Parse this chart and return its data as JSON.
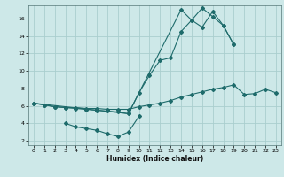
{
  "background_color": "#cde8e8",
  "grid_color": "#aacece",
  "line_color": "#1e6b6b",
  "xlabel": "Humidex (Indice chaleur)",
  "xlim": [
    -0.5,
    23.5
  ],
  "ylim": [
    1.5,
    17.5
  ],
  "yticks": [
    2,
    4,
    6,
    8,
    10,
    12,
    14,
    16
  ],
  "xticks": [
    0,
    1,
    2,
    3,
    4,
    5,
    6,
    7,
    8,
    9,
    10,
    11,
    12,
    13,
    14,
    15,
    16,
    17,
    18,
    19,
    20,
    21,
    22,
    23
  ],
  "series1_x": [
    0,
    1,
    2,
    3,
    4,
    5,
    6,
    7,
    8,
    9,
    10,
    11,
    12,
    13,
    14,
    15,
    16,
    17,
    18,
    19,
    20,
    21,
    22,
    23
  ],
  "series1_y": [
    6.3,
    6.1,
    5.9,
    5.8,
    5.8,
    5.7,
    5.7,
    5.6,
    5.6,
    5.6,
    5.9,
    6.1,
    6.3,
    6.6,
    7.0,
    7.3,
    7.6,
    7.9,
    8.1,
    8.4,
    7.3,
    7.4,
    7.9,
    7.5
  ],
  "series2_x": [
    0,
    1,
    2,
    3,
    4,
    5,
    6,
    7,
    8,
    9,
    10,
    11,
    12,
    13,
    14,
    15,
    16,
    17,
    18,
    19
  ],
  "series2_y": [
    6.3,
    6.1,
    5.9,
    5.8,
    5.7,
    5.6,
    5.5,
    5.4,
    5.3,
    5.1,
    7.5,
    9.5,
    11.2,
    11.5,
    14.5,
    15.8,
    15.0,
    16.8,
    15.2,
    13.0
  ],
  "series3_x": [
    3,
    4,
    5,
    6,
    7,
    8,
    9,
    10
  ],
  "series3_y": [
    4.0,
    3.6,
    3.4,
    3.2,
    2.8,
    2.5,
    3.0,
    4.8
  ],
  "series4_x": [
    0,
    9,
    14,
    15,
    16,
    17,
    18,
    19
  ],
  "series4_y": [
    6.3,
    5.1,
    17.0,
    15.8,
    17.2,
    16.2,
    15.2,
    13.0
  ]
}
